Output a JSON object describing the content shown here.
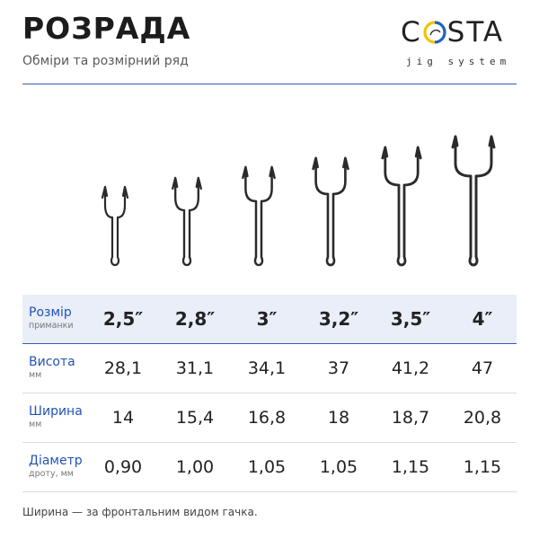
{
  "header": {
    "title": "РОЗРАДА",
    "subtitle": "Обміри та розмірний ряд"
  },
  "logo": {
    "letters": [
      "C",
      "STA"
    ],
    "tagline": "jig system",
    "colors": {
      "ring_left": "#f2c300",
      "ring_right": "#1f5fc7",
      "text": "#222222"
    }
  },
  "accent_color": "#2453b3",
  "table": {
    "rows": [
      {
        "label": "Розмір",
        "unit": "приманки",
        "values": [
          "2,5″",
          "2,8″",
          "3″",
          "3,2″",
          "3,5″",
          "4″"
        ]
      },
      {
        "label": "Висота",
        "unit": "мм",
        "values": [
          "28,1",
          "31,1",
          "34,1",
          "37",
          "41,2",
          "47"
        ]
      },
      {
        "label": "Ширина",
        "unit": "мм",
        "values": [
          "14",
          "15,4",
          "16,8",
          "18",
          "18,7",
          "20,8"
        ]
      },
      {
        "label": "Діаметр",
        "unit": "дроту, мм",
        "values": [
          "0,90",
          "1,00",
          "1,05",
          "1,05",
          "1,15",
          "1,15"
        ]
      }
    ]
  },
  "hooks": [
    "double-hook-icon",
    "double-hook-icon",
    "double-hook-icon",
    "double-hook-icon",
    "double-hook-icon",
    "double-hook-icon"
  ],
  "footnote": "Ширина — за фронтальним видом гачка."
}
